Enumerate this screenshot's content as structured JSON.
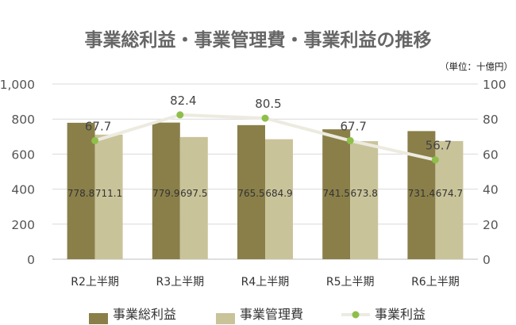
{
  "chart_data": {
    "type": "bar",
    "title": "事業総利益・事業管理費・事業利益の推移",
    "unit_note": "（単位：十億円）",
    "categories": [
      "R2上半期",
      "R3上半期",
      "R4上半期",
      "R5上半期",
      "R6上半期"
    ],
    "ylim": [
      0,
      1000
    ],
    "yticks": [
      "0",
      "200",
      "400",
      "600",
      "800",
      "1,000"
    ],
    "y2lim": [
      0,
      100
    ],
    "y2ticks": [
      "0",
      "20",
      "40",
      "60",
      "80",
      "100"
    ],
    "grid": true,
    "legend_position": "bottom",
    "series": [
      {
        "name": "事業総利益",
        "type": "bar",
        "axis": "left",
        "color": "#8a7f49",
        "values": [
          778.8,
          779.9,
          765.5,
          741.5,
          731.4
        ],
        "labels": [
          "778.8",
          "779.9",
          "765.5",
          "741.5",
          "731.4"
        ]
      },
      {
        "name": "事業管理費",
        "type": "bar",
        "axis": "left",
        "color": "#c9c39a",
        "values": [
          711.1,
          697.5,
          684.9,
          673.8,
          674.7
        ],
        "labels": [
          "711.1",
          "697.5",
          "684.9",
          "673.8",
          "674.7"
        ]
      },
      {
        "name": "事業利益",
        "type": "line",
        "axis": "right",
        "color": "#edebe0",
        "marker_color": "#8ebf4a",
        "values": [
          67.7,
          82.4,
          80.5,
          67.7,
          56.7
        ],
        "labels": [
          "67.7",
          "82.4",
          "80.5",
          "67.7",
          "56.7"
        ]
      }
    ]
  }
}
